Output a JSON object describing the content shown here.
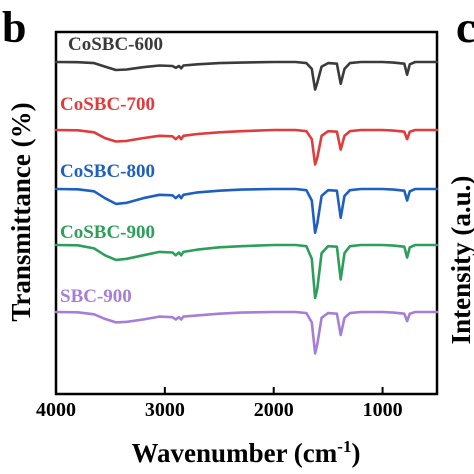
{
  "figure": {
    "panel_label": "b",
    "neighbor_panel_label": "c",
    "neighbor_axis_fragment": "Intensity (a.u.)"
  },
  "chart_data": {
    "type": "line",
    "title": "",
    "xlabel_main": "Wavenumber (cm",
    "xlabel_sup": "-1",
    "xlabel_close": ")",
    "ylabel": "Transmittance (%)",
    "xlim": [
      4000,
      500
    ],
    "x_reversed": true,
    "x_ticks": [
      4000,
      3000,
      2000,
      1000
    ],
    "y_ticks_shown": false,
    "grid": false,
    "legend": "inline labels above each trace",
    "series": [
      {
        "name": "CoSBC-600",
        "color": "#3b3b3b",
        "points": [
          [
            4000,
            0
          ],
          [
            3800,
            -0.2
          ],
          [
            3650,
            -1
          ],
          [
            3550,
            -4
          ],
          [
            3450,
            -7
          ],
          [
            3350,
            -6.5
          ],
          [
            3200,
            -4.5
          ],
          [
            3050,
            -3
          ],
          [
            2930,
            -3.5
          ],
          [
            2900,
            -5
          ],
          [
            2870,
            -3.5
          ],
          [
            2850,
            -5.5
          ],
          [
            2830,
            -3
          ],
          [
            2700,
            -2
          ],
          [
            2500,
            -1
          ],
          [
            2300,
            -0.5
          ],
          [
            2000,
            0
          ],
          [
            1800,
            0
          ],
          [
            1700,
            -1
          ],
          [
            1650,
            -6
          ],
          [
            1620,
            -24
          ],
          [
            1600,
            -18
          ],
          [
            1560,
            -4
          ],
          [
            1500,
            -1
          ],
          [
            1420,
            -1.5
          ],
          [
            1385,
            -19
          ],
          [
            1350,
            -6
          ],
          [
            1300,
            -1
          ],
          [
            1200,
            0
          ],
          [
            1000,
            0
          ],
          [
            900,
            -0.5
          ],
          [
            800,
            -1.5
          ],
          [
            775,
            -11
          ],
          [
            750,
            -2
          ],
          [
            700,
            0
          ],
          [
            500,
            0
          ]
        ]
      },
      {
        "name": "CoSBC-700",
        "color": "#e03c3c",
        "points": [
          [
            4000,
            0
          ],
          [
            3800,
            -0.3
          ],
          [
            3650,
            -2
          ],
          [
            3550,
            -7
          ],
          [
            3450,
            -10
          ],
          [
            3350,
            -9.5
          ],
          [
            3200,
            -7
          ],
          [
            3050,
            -5
          ],
          [
            2930,
            -5.5
          ],
          [
            2900,
            -8
          ],
          [
            2870,
            -5.5
          ],
          [
            2850,
            -8
          ],
          [
            2830,
            -5
          ],
          [
            2700,
            -3.5
          ],
          [
            2500,
            -2
          ],
          [
            2300,
            -1
          ],
          [
            2000,
            0
          ],
          [
            1800,
            0
          ],
          [
            1700,
            -1
          ],
          [
            1650,
            -8
          ],
          [
            1620,
            -30
          ],
          [
            1600,
            -24
          ],
          [
            1560,
            -5
          ],
          [
            1500,
            -1
          ],
          [
            1420,
            -1.5
          ],
          [
            1385,
            -17
          ],
          [
            1350,
            -5
          ],
          [
            1300,
            -1
          ],
          [
            1200,
            0
          ],
          [
            1000,
            0
          ],
          [
            900,
            -0.5
          ],
          [
            800,
            -1.5
          ],
          [
            775,
            -8
          ],
          [
            750,
            -1.5
          ],
          [
            700,
            0
          ],
          [
            500,
            0
          ]
        ]
      },
      {
        "name": "CoSBC-800",
        "color": "#1f5fc0",
        "points": [
          [
            4000,
            0
          ],
          [
            3800,
            -0.3
          ],
          [
            3650,
            -2
          ],
          [
            3550,
            -8
          ],
          [
            3450,
            -13
          ],
          [
            3350,
            -12
          ],
          [
            3200,
            -8
          ],
          [
            3050,
            -5
          ],
          [
            2930,
            -5.5
          ],
          [
            2900,
            -8
          ],
          [
            2870,
            -5.5
          ],
          [
            2850,
            -8
          ],
          [
            2830,
            -5
          ],
          [
            2700,
            -3
          ],
          [
            2500,
            -1.5
          ],
          [
            2300,
            -0.5
          ],
          [
            2000,
            0
          ],
          [
            1800,
            0
          ],
          [
            1700,
            -1
          ],
          [
            1650,
            -10
          ],
          [
            1620,
            -38
          ],
          [
            1600,
            -30
          ],
          [
            1560,
            -6
          ],
          [
            1500,
            -1
          ],
          [
            1420,
            -1.5
          ],
          [
            1385,
            -25
          ],
          [
            1350,
            -6
          ],
          [
            1300,
            -1
          ],
          [
            1200,
            0
          ],
          [
            1000,
            0
          ],
          [
            900,
            -0.5
          ],
          [
            800,
            -1.5
          ],
          [
            775,
            -10
          ],
          [
            750,
            -2
          ],
          [
            700,
            0
          ],
          [
            500,
            0
          ]
        ]
      },
      {
        "name": "CoSBC-900",
        "color": "#2e9e5b",
        "points": [
          [
            4000,
            0
          ],
          [
            3800,
            -0.3
          ],
          [
            3650,
            -3
          ],
          [
            3550,
            -9
          ],
          [
            3450,
            -13
          ],
          [
            3350,
            -12
          ],
          [
            3200,
            -9
          ],
          [
            3050,
            -6
          ],
          [
            2930,
            -6.5
          ],
          [
            2900,
            -9
          ],
          [
            2870,
            -6.5
          ],
          [
            2850,
            -9
          ],
          [
            2830,
            -6
          ],
          [
            2700,
            -4
          ],
          [
            2500,
            -2
          ],
          [
            2300,
            -1
          ],
          [
            2000,
            0
          ],
          [
            1800,
            0
          ],
          [
            1700,
            -1
          ],
          [
            1650,
            -12
          ],
          [
            1620,
            -46
          ],
          [
            1600,
            -38
          ],
          [
            1560,
            -7
          ],
          [
            1500,
            -1
          ],
          [
            1420,
            -1.5
          ],
          [
            1385,
            -30
          ],
          [
            1350,
            -7
          ],
          [
            1300,
            -1
          ],
          [
            1200,
            0
          ],
          [
            1000,
            0
          ],
          [
            900,
            -0.5
          ],
          [
            800,
            -1.5
          ],
          [
            775,
            -11
          ],
          [
            750,
            -2
          ],
          [
            700,
            0
          ],
          [
            500,
            0
          ]
        ]
      },
      {
        "name": "SBC-900",
        "color": "#a57fd6",
        "points": [
          [
            4000,
            0
          ],
          [
            3800,
            -0.3
          ],
          [
            3650,
            -2
          ],
          [
            3550,
            -6
          ],
          [
            3450,
            -9
          ],
          [
            3350,
            -8.5
          ],
          [
            3200,
            -6.5
          ],
          [
            3050,
            -4
          ],
          [
            2930,
            -4.5
          ],
          [
            2900,
            -6.5
          ],
          [
            2870,
            -4.5
          ],
          [
            2850,
            -6.5
          ],
          [
            2830,
            -4
          ],
          [
            2700,
            -3
          ],
          [
            2500,
            -1.5
          ],
          [
            2300,
            -0.5
          ],
          [
            2000,
            0
          ],
          [
            1800,
            0
          ],
          [
            1700,
            -1
          ],
          [
            1650,
            -9
          ],
          [
            1620,
            -36
          ],
          [
            1600,
            -28
          ],
          [
            1560,
            -5
          ],
          [
            1500,
            -1
          ],
          [
            1420,
            -1.5
          ],
          [
            1385,
            -20
          ],
          [
            1350,
            -5
          ],
          [
            1300,
            -1
          ],
          [
            1200,
            0
          ],
          [
            1000,
            0
          ],
          [
            900,
            -0.5
          ],
          [
            800,
            -1.5
          ],
          [
            775,
            -8
          ],
          [
            750,
            -1.5
          ],
          [
            700,
            0
          ],
          [
            500,
            0
          ]
        ]
      }
    ]
  }
}
